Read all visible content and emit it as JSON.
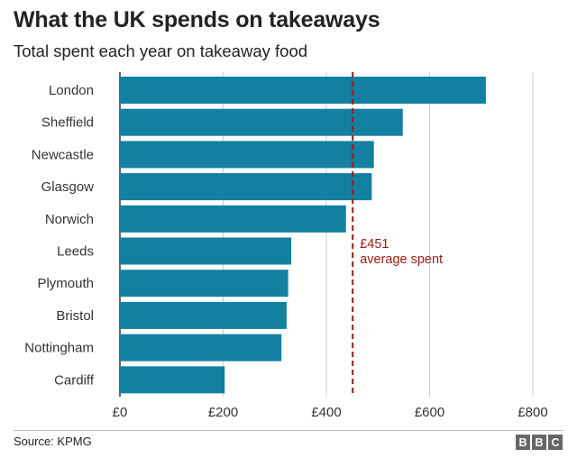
{
  "title": "What the UK spends on takeaways",
  "subtitle": "Total spent each year on takeaway food",
  "source": "Source: KPMG",
  "logo": [
    "B",
    "B",
    "C"
  ],
  "colors": {
    "bar": "#1380a1",
    "average_line": "#9b1a13",
    "grid": "#cccccc",
    "axis": "#333333"
  },
  "chart_data": {
    "type": "bar",
    "orientation": "horizontal",
    "categories": [
      "London",
      "Sheffield",
      "Newcastle",
      "Glasgow",
      "Norwich",
      "Leeds",
      "Plymouth",
      "Bristol",
      "Nottingham",
      "Cardiff"
    ],
    "values": [
      709,
      548,
      492,
      488,
      438,
      332,
      326,
      323,
      313,
      203
    ],
    "x_ticks": [
      "£0",
      "£200",
      "£400",
      "£600",
      "£800"
    ],
    "x_tick_values": [
      0,
      200,
      400,
      600,
      800
    ],
    "xlim": [
      0,
      800
    ],
    "grid": true,
    "reference_line": {
      "value": 451,
      "label_lines": [
        "£451",
        "average spent"
      ]
    }
  }
}
